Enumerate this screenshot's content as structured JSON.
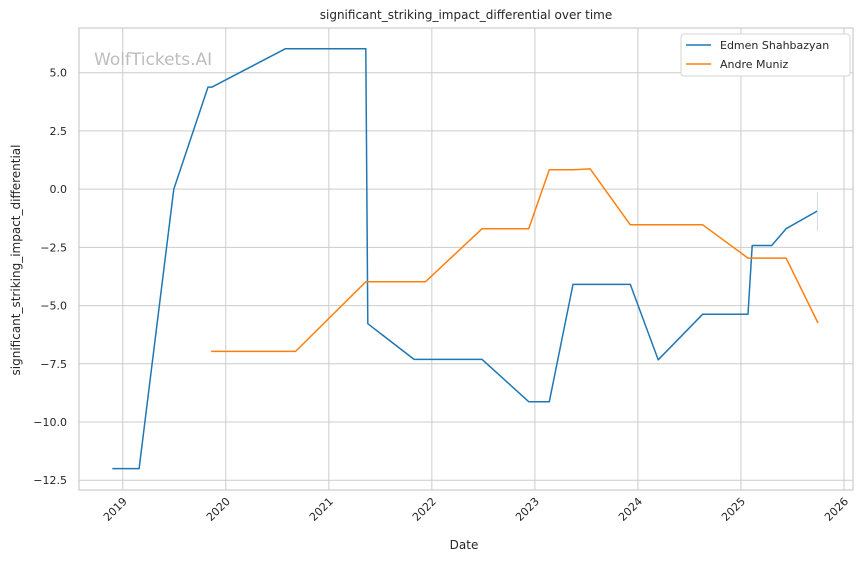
{
  "chart_data": {
    "type": "line",
    "title": "significant_striking_impact_differential over time",
    "xlabel": "Date",
    "ylabel": "significant_striking_impact_differential",
    "watermark": "WolfTickets.AI",
    "xlim": [
      "2018-07-30",
      "2026-02-02"
    ],
    "ylim": [
      -12.92,
      6.92
    ],
    "x_ticks": [
      "2019",
      "2020",
      "2021",
      "2022",
      "2023",
      "2024",
      "2025",
      "2026"
    ],
    "y_ticks": [
      5.0,
      2.5,
      0.0,
      -2.5,
      -5.0,
      -7.5,
      -10.0,
      -12.5
    ],
    "y_tick_labels": [
      "5.0",
      "2.5",
      "0.0",
      "−2.5",
      "−5.0",
      "−7.5",
      "−10.0",
      "−12.5"
    ],
    "grid": true,
    "legend_position": "top-right",
    "series": [
      {
        "name": "Edmen Shahbazyan",
        "color": "#1f77b4",
        "x": [
          "2018-11-25",
          "2019-02-28",
          "2019-07-01",
          "2019-10-30",
          "2019-11-13",
          "2020-07-31",
          "2021-05-12",
          "2021-05-19",
          "2021-10-30",
          "2022-06-28",
          "2022-12-10",
          "2023-02-21",
          "2023-05-16",
          "2023-12-05",
          "2024-03-13",
          "2024-08-18",
          "2025-01-26",
          "2025-02-10",
          "2025-04-20",
          "2025-06-10",
          "2025-10-01"
        ],
        "y": [
          -12.0,
          -12.0,
          0.0,
          4.38,
          4.38,
          6.03,
          6.03,
          -5.78,
          -7.31,
          -7.31,
          -9.13,
          -9.13,
          -4.09,
          -4.09,
          -7.33,
          -5.37,
          -5.37,
          -2.42,
          -2.42,
          -1.7,
          -0.92
        ]
      },
      {
        "name": "Andre Muniz",
        "color": "#ff7f0e",
        "x": [
          "2019-11-10",
          "2020-09-05",
          "2021-05-12",
          "2021-12-09",
          "2022-06-28",
          "2022-12-10",
          "2023-02-21",
          "2023-05-16",
          "2023-07-16",
          "2023-12-05",
          "2024-08-18",
          "2025-01-26",
          "2025-06-10",
          "2025-10-01"
        ],
        "y": [
          -6.97,
          -6.97,
          -3.98,
          -3.98,
          -1.7,
          -1.7,
          0.83,
          0.83,
          0.87,
          -1.53,
          -1.53,
          -2.96,
          -2.96,
          -5.75
        ]
      }
    ]
  }
}
